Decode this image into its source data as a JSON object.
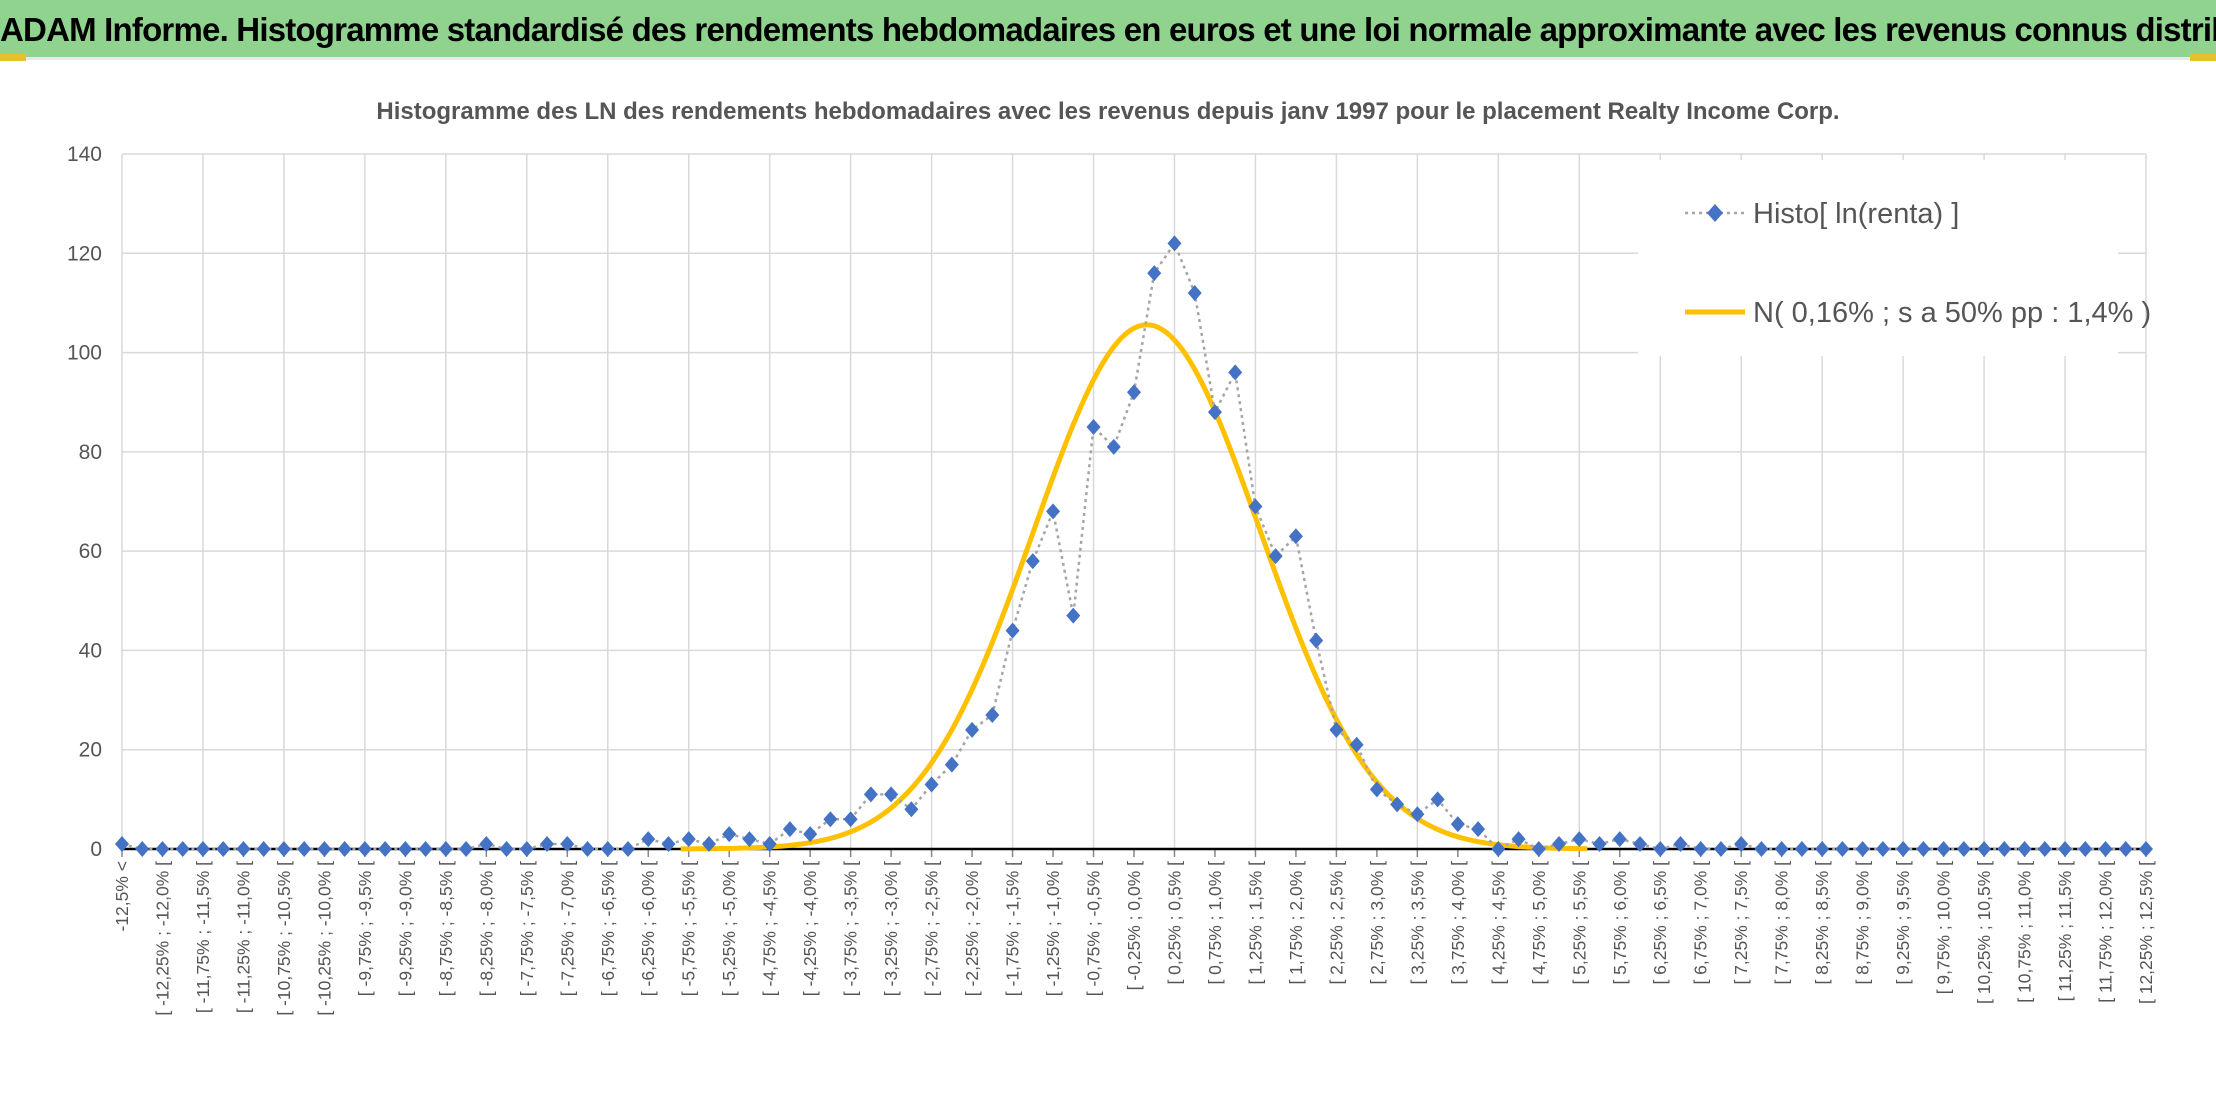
{
  "header": {
    "title": "ADAM Informe. Histogramme standardisé des rendements hebdomadaires en euros et une loi normale approximante avec les revenus connus distribués"
  },
  "colors": {
    "banner": "#8fd38f",
    "accent": "#e6c22a",
    "histogram": "#4472c4",
    "normal_curve": "#ffc000",
    "grid": "#d9d9d9"
  },
  "chart_data": {
    "type": "line",
    "title": "Histogramme des LN des rendements hebdomadaires avec les revenus depuis janv 1997 pour le placement Realty Income Corp.",
    "xlabel": "",
    "ylabel": "",
    "ylim": [
      0,
      140
    ],
    "yticks": [
      0,
      20,
      40,
      60,
      80,
      100,
      120,
      140
    ],
    "grid": true,
    "legend_position": "top-right",
    "categories": [
      "-12,5% <",
      "[ -12,25% ; -12,0% [",
      "[ -11,75% ; -11,5% [",
      "[ -11,25% ; -11,0% [",
      "[ -10,75% ; -10,5% [",
      "[ -10,25% ; -10,0% [",
      "[ -9,75% ; -9,5% [",
      "[ -9,25% ; -9,0% [",
      "[ -8,75% ; -8,5% [",
      "[ -8,25% ; -8,0% [",
      "[ -7,75% ; -7,5% [",
      "[ -7,25% ; -7,0% [",
      "[ -6,75% ; -6,5% [",
      "[ -6,25% ; -6,0% [",
      "[ -5,75% ; -5,5% [",
      "[ -5,25% ; -5,0% [",
      "[ -4,75% ; -4,5% [",
      "[ -4,25% ; -4,0% [",
      "[ -3,75% ; -3,5% [",
      "[ -3,25% ; -3,0% [",
      "[ -2,75% ; -2,5% [",
      "[ -2,25% ; -2,0% [",
      "[ -1,75% ; -1,5% [",
      "[ -1,25% ; -1,0% [",
      "[ -0,75% ; -0,5% [",
      "[ -0,25% ; 0,0% [",
      "[ 0,25% ; 0,5% [",
      "[ 0,75% ; 1,0% [",
      "[ 1,25% ; 1,5% [",
      "[ 1,75% ; 2,0% [",
      "[ 2,25% ; 2,5% [",
      "[ 2,75% ; 3,0% [",
      "[ 3,25% ; 3,5% [",
      "[ 3,75% ; 4,0% [",
      "[ 4,25% ; 4,5% [",
      "[ 4,75% ; 5,0% [",
      "[ 5,25% ; 5,5% [",
      "[ 5,75% ; 6,0% [",
      "[ 6,25% ; 6,5% [",
      "[ 6,75% ; 7,0% [",
      "[ 7,25% ; 7,5% [",
      "[ 7,75% ; 8,0% [",
      "[ 8,25% ; 8,5% [",
      "[ 8,75% ; 9,0% [",
      "[ 9,25% ; 9,5% [",
      "[ 9,75% ; 10,0% [",
      "[ 10,25% ; 10,5% [",
      "[ 10,75% ; 11,0% [",
      "[ 11,25% ; 11,5% [",
      "[ 11,75% ; 12,0% [",
      "[ 12,25% ; 12,5% ["
    ],
    "x": [
      -12.5,
      -12.25,
      -12.0,
      -11.75,
      -11.5,
      -11.25,
      -11.0,
      -10.75,
      -10.5,
      -10.25,
      -10.0,
      -9.75,
      -9.5,
      -9.25,
      -9.0,
      -8.75,
      -8.5,
      -8.25,
      -8.0,
      -7.75,
      -7.5,
      -7.25,
      -7.0,
      -6.75,
      -6.5,
      -6.25,
      -6.0,
      -5.75,
      -5.5,
      -5.25,
      -5.0,
      -4.75,
      -4.5,
      -4.25,
      -4.0,
      -3.75,
      -3.5,
      -3.25,
      -3.0,
      -2.75,
      -2.5,
      -2.25,
      -2.0,
      -1.75,
      -1.5,
      -1.25,
      -1.0,
      -0.75,
      -0.5,
      -0.25,
      0.0,
      0.25,
      0.5,
      0.75,
      1.0,
      1.25,
      1.5,
      1.75,
      2.0,
      2.25,
      2.5,
      2.75,
      3.0,
      3.25,
      3.5,
      3.75,
      4.0,
      4.25,
      4.5,
      4.75,
      5.0,
      5.25,
      5.5,
      5.75,
      6.0,
      6.25,
      6.5,
      6.75,
      7.0,
      7.25,
      7.5,
      7.75,
      8.0,
      8.25,
      8.5,
      8.75,
      9.0,
      9.25,
      9.5,
      9.75,
      10.0,
      10.25,
      10.5,
      10.75,
      11.0,
      11.25,
      11.5,
      11.75,
      12.0,
      12.25,
      12.5
    ],
    "series": [
      {
        "name": "Histo[ ln(renta) ]",
        "marker": "diamond",
        "line": "dotted",
        "values": [
          1,
          0,
          0,
          0,
          0,
          0,
          0,
          0,
          0,
          0,
          0,
          0,
          0,
          0,
          0,
          0,
          0,
          0,
          1,
          0,
          0,
          1,
          1,
          0,
          0,
          0,
          2,
          1,
          2,
          1,
          3,
          2,
          1,
          4,
          3,
          6,
          6,
          11,
          11,
          8,
          13,
          17,
          24,
          27,
          44,
          58,
          68,
          47,
          85,
          81,
          92,
          116,
          122,
          112,
          88,
          96,
          69,
          59,
          63,
          42,
          24,
          21,
          12,
          9,
          7,
          10,
          5,
          4,
          0,
          2,
          0,
          1,
          2,
          1,
          2,
          1,
          0,
          1,
          0,
          0,
          1,
          0,
          0,
          0,
          0,
          0,
          0,
          0,
          0,
          0,
          0,
          0,
          0,
          0,
          0,
          0,
          0,
          0,
          0,
          0,
          0
        ]
      },
      {
        "name": "N( 0,16% ; s a 50% pp : 1,4% )",
        "type": "normal_curve",
        "mean": 0.16,
        "sd": 1.4,
        "peak": 105.6
      }
    ]
  }
}
